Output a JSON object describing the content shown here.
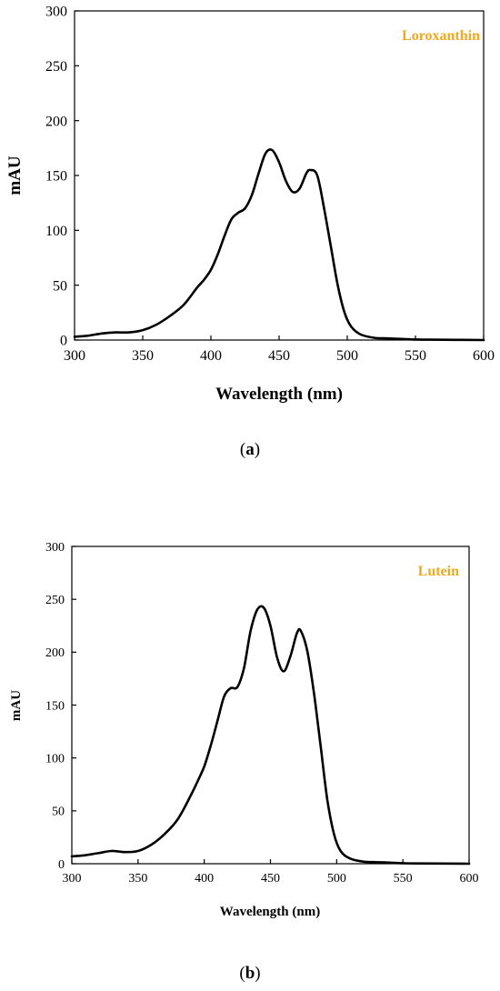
{
  "colors": {
    "accent": "#f0a81e",
    "line": "#000000",
    "background": "#ffffff"
  },
  "chart_data": [
    {
      "type": "line",
      "panel_label": "a",
      "xlabel": "Wavelength (nm)",
      "ylabel": "mAU",
      "xlim": [
        300,
        600
      ],
      "ylim": [
        0,
        300
      ],
      "xticks": [
        300,
        350,
        400,
        450,
        500,
        550,
        600
      ],
      "yticks": [
        0,
        50,
        100,
        150,
        200,
        250,
        300
      ],
      "grid": false,
      "series": [
        {
          "name": "Loroxanthin",
          "x": [
            300,
            310,
            320,
            330,
            340,
            350,
            360,
            370,
            380,
            390,
            395,
            400,
            405,
            410,
            415,
            420,
            425,
            430,
            435,
            440,
            445,
            450,
            455,
            460,
            465,
            470,
            473,
            478,
            483,
            488,
            493,
            498,
            503,
            510,
            520,
            530,
            540,
            550,
            560,
            600
          ],
          "y": [
            3,
            4,
            6,
            7,
            7,
            9,
            14,
            22,
            32,
            48,
            55,
            64,
            78,
            95,
            110,
            116,
            120,
            132,
            152,
            170,
            173,
            162,
            145,
            135,
            138,
            152,
            155,
            150,
            120,
            85,
            50,
            25,
            12,
            5,
            2,
            1.5,
            1,
            0.5,
            0.3,
            0
          ]
        }
      ]
    },
    {
      "type": "line",
      "panel_label": "b",
      "xlabel": "Wavelength (nm)",
      "ylabel": "mAU",
      "xlim": [
        300,
        600
      ],
      "ylim": [
        0,
        300
      ],
      "xticks": [
        300,
        350,
        400,
        450,
        500,
        550,
        600
      ],
      "yticks": [
        0,
        50,
        100,
        150,
        200,
        250,
        300
      ],
      "grid": false,
      "series": [
        {
          "name": "Lutein",
          "x": [
            300,
            310,
            320,
            330,
            340,
            350,
            360,
            370,
            380,
            390,
            395,
            400,
            405,
            410,
            415,
            420,
            425,
            430,
            435,
            440,
            445,
            450,
            455,
            460,
            465,
            470,
            473,
            478,
            483,
            488,
            493,
            498,
            503,
            510,
            520,
            530,
            540,
            550,
            560,
            600
          ],
          "y": [
            7,
            8,
            10,
            12,
            11,
            12,
            18,
            28,
            42,
            65,
            78,
            92,
            112,
            135,
            158,
            166,
            167,
            185,
            220,
            240,
            242,
            225,
            195,
            182,
            196,
            218,
            220,
            200,
            160,
            110,
            60,
            28,
            12,
            5,
            2,
            1.5,
            1,
            0.5,
            0.3,
            0
          ]
        }
      ]
    }
  ]
}
